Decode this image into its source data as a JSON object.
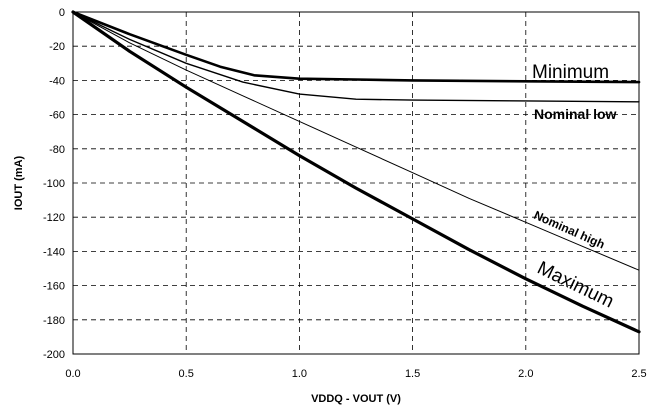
{
  "chart_data": {
    "type": "line",
    "title": "",
    "xlabel": "VDDQ - VOUT (V)",
    "ylabel": "IOUT (mA)",
    "xlim": [
      0,
      2.5
    ],
    "ylim": [
      -200,
      0
    ],
    "x_ticks": [
      0.0,
      0.5,
      1.0,
      1.5,
      2.0,
      2.5
    ],
    "x_tick_labels": [
      "0.0",
      "0.5",
      "1.0",
      "1.5",
      "2.0",
      "2.5"
    ],
    "y_ticks": [
      0,
      -20,
      -40,
      -60,
      -80,
      -100,
      -120,
      -140,
      -160,
      -180,
      -200
    ],
    "y_tick_labels": [
      "0",
      "-20",
      "-40",
      "-60",
      "-80",
      "-100",
      "-120",
      "-140",
      "-160",
      "-180",
      "-200"
    ],
    "grid": true,
    "legend": "none",
    "series": [
      {
        "name": "Minimum",
        "color": "#000000",
        "x": [
          0,
          0.25,
          0.5,
          0.65,
          0.8,
          1.0,
          1.25,
          1.5,
          2.0,
          2.5
        ],
        "values": [
          0,
          -13,
          -25,
          -32,
          -37,
          -39,
          -39.5,
          -40,
          -40.5,
          -41
        ]
      },
      {
        "name": "Nominal low",
        "color": "#000000",
        "x": [
          0,
          0.25,
          0.5,
          0.75,
          1.0,
          1.25,
          1.5,
          2.0,
          2.5
        ],
        "values": [
          0,
          -16,
          -30,
          -41,
          -48,
          -51,
          -51.5,
          -52,
          -52.5
        ]
      },
      {
        "name": "Nominal high",
        "color": "#000000",
        "x": [
          0,
          0.25,
          0.5,
          0.75,
          1.0,
          1.25,
          1.5,
          1.75,
          2.0,
          2.25,
          2.5
        ],
        "values": [
          0,
          -18,
          -34,
          -49,
          -64,
          -79,
          -94,
          -109,
          -123,
          -137,
          -151
        ]
      },
      {
        "name": "Maximum",
        "color": "#000000",
        "x": [
          0,
          0.25,
          0.5,
          0.75,
          1.0,
          1.25,
          1.5,
          1.75,
          2.0,
          2.25,
          2.5
        ],
        "values": [
          0,
          -23,
          -44,
          -64,
          -84,
          -103,
          -121,
          -139,
          -156,
          -172,
          -187
        ]
      }
    ]
  }
}
